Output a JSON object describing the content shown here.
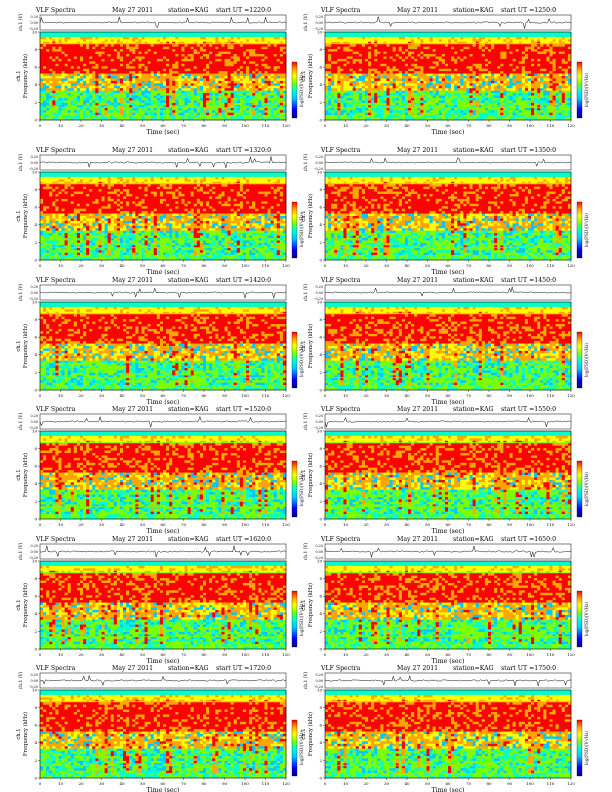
{
  "chart_data": {
    "type": "heatmap",
    "header_left": "VLF Spectra",
    "header_mid": "May 27 2011",
    "header_station": "station=KAG",
    "waveform_ylabel": "ch.1 (V)",
    "waveform_ticks": [
      "0.20",
      "0.00",
      "-0.20"
    ],
    "spectrogram_ylabel": "Frequency (kHz)",
    "spectrogram_channel": "ch.1",
    "colorbar_label": "log(PSD)(V²/Hz)",
    "freq_ticks": [
      "0",
      "2",
      "4",
      "6",
      "8",
      "10"
    ],
    "time_ticks": [
      "0",
      "10",
      "20",
      "30",
      "40",
      "50",
      "60",
      "70",
      "80",
      "90",
      "100",
      "110",
      "120"
    ],
    "xlabel": "Time (sec)",
    "xlim": [
      0,
      120
    ],
    "ylim_khz": [
      0,
      10
    ],
    "colormap": [
      "#00008b",
      "#0000ff",
      "#00c8ff",
      "#00ffcc",
      "#7cff00",
      "#ffff00",
      "#ffa500",
      "#ff0000"
    ],
    "panels": [
      {
        "start_ut": "start  UT =1220:0"
      },
      {
        "start_ut": "start  UT =1250:0"
      },
      {
        "start_ut": "start  UT =1320:0"
      },
      {
        "start_ut": "start  UT =1350:0"
      },
      {
        "start_ut": "start  UT =1420:0"
      },
      {
        "start_ut": "start  UT =1450:0"
      },
      {
        "start_ut": "start  UT =1520:0"
      },
      {
        "start_ut": "start  UT =1550:0"
      },
      {
        "start_ut": "start  UT =1620:0"
      },
      {
        "start_ut": "start  UT =1650:0"
      },
      {
        "start_ut": "start  UT =1720:0"
      },
      {
        "start_ut": "start  UT =1750:0"
      }
    ]
  }
}
